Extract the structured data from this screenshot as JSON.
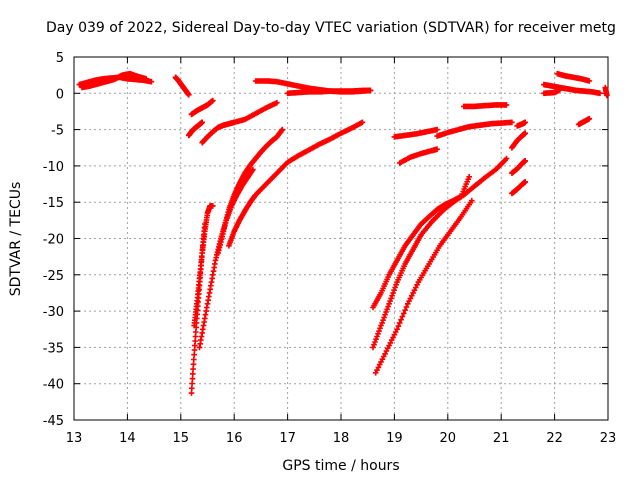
{
  "chart_data": {
    "type": "scatter",
    "title": "Day 039 of 2022, Sidereal Day-to-day VTEC variation (SDTVAR) for receiver metg",
    "xlabel": "GPS time / hours",
    "ylabel": "SDTVAR / TECUs",
    "xlim": [
      13,
      23
    ],
    "ylim": [
      -45,
      5
    ],
    "x_ticks": [
      "13",
      "14",
      "15",
      "16",
      "17",
      "18",
      "19",
      "20",
      "21",
      "22",
      "23"
    ],
    "y_ticks": [
      "5",
      "0",
      "-5",
      "-10",
      "-15",
      "-20",
      "-25",
      "-30",
      "-35",
      "-40",
      "-45"
    ],
    "grid": true,
    "marker": "+",
    "color": "#ff0000",
    "series": [
      {
        "name": "seg1",
        "x": [
          13.1,
          13.25,
          13.4,
          13.55,
          13.7,
          13.85,
          14.0,
          14.15,
          14.3,
          14.45
        ],
        "y": [
          1.2,
          1.5,
          1.8,
          2.0,
          2.1,
          2.2,
          2.0,
          1.9,
          1.8,
          1.6
        ]
      },
      {
        "name": "seg2",
        "x": [
          13.15,
          13.3,
          13.45,
          13.6,
          13.75,
          13.9,
          14.05,
          14.2,
          14.35
        ],
        "y": [
          0.8,
          1.0,
          1.3,
          1.6,
          1.9,
          2.5,
          2.7,
          2.3,
          2.0
        ]
      },
      {
        "name": "seg3",
        "x": [
          14.9,
          14.95,
          15.0,
          15.05,
          15.1,
          15.15
        ],
        "y": [
          2.2,
          1.8,
          1.3,
          0.8,
          0.3,
          -0.2
        ]
      },
      {
        "name": "seg4",
        "x": [
          15.2,
          15.3,
          15.4,
          15.5,
          15.6
        ],
        "y": [
          -2.9,
          -2.4,
          -2.0,
          -1.6,
          -1.0
        ]
      },
      {
        "name": "seg5",
        "x": [
          15.15,
          15.2,
          15.25,
          15.3,
          15.35,
          15.4
        ],
        "y": [
          -5.8,
          -5.3,
          -4.9,
          -4.6,
          -4.3,
          -4.0
        ]
      },
      {
        "name": "seg6",
        "x": [
          15.4,
          15.5,
          15.6,
          15.7,
          15.8,
          15.9,
          16.0,
          16.2,
          16.4,
          16.6,
          16.8
        ],
        "y": [
          -6.8,
          -6.0,
          -5.3,
          -4.7,
          -4.4,
          -4.2,
          -4.0,
          -3.6,
          -2.8,
          -2.0,
          -1.3
        ]
      },
      {
        "name": "seg7",
        "x": [
          16.4,
          16.6,
          16.8,
          17.0,
          17.2,
          17.4,
          17.6,
          17.8,
          18.0,
          18.2,
          18.4,
          18.55
        ],
        "y": [
          1.7,
          1.7,
          1.6,
          1.3,
          1.0,
          0.7,
          0.5,
          0.3,
          0.2,
          0.2,
          0.3,
          0.4
        ]
      },
      {
        "name": "seg8",
        "x": [
          17.0,
          17.2,
          17.4,
          17.6,
          17.8,
          18.0,
          18.2,
          18.4,
          18.55
        ],
        "y": [
          0.0,
          0.1,
          0.2,
          0.2,
          0.3,
          0.3,
          0.3,
          0.4,
          0.4
        ]
      },
      {
        "name": "seg9",
        "x": [
          15.2,
          15.25,
          15.3,
          15.35,
          15.4,
          15.45
        ],
        "y": [
          -41.3,
          -36.0,
          -31.0,
          -26.5,
          -22.0,
          -18.0
        ]
      },
      {
        "name": "seg10",
        "x": [
          15.25,
          15.3,
          15.35,
          15.4,
          15.45,
          15.5,
          15.55,
          15.6
        ],
        "y": [
          -32.0,
          -29.0,
          -25.5,
          -22.0,
          -19.0,
          -16.5,
          -15.5,
          -15.5
        ]
      },
      {
        "name": "seg11",
        "x": [
          15.35,
          15.45,
          15.55,
          15.65,
          15.75,
          15.85,
          15.95,
          16.05,
          16.15,
          16.25,
          16.35
        ],
        "y": [
          -35.0,
          -31.0,
          -27.0,
          -23.0,
          -20.0,
          -17.5,
          -15.5,
          -14.0,
          -12.7,
          -11.6,
          -10.5
        ]
      },
      {
        "name": "seg12",
        "x": [
          15.7,
          15.8,
          15.9,
          16.0,
          16.1,
          16.2,
          16.3,
          16.4,
          16.5,
          16.6,
          16.7,
          16.8,
          16.9
        ],
        "y": [
          -22.0,
          -19.0,
          -16.0,
          -14.0,
          -12.4,
          -11.0,
          -9.9,
          -9.0,
          -8.1,
          -7.3,
          -6.6,
          -6.0,
          -5.0
        ]
      },
      {
        "name": "seg13",
        "x": [
          15.9,
          16.0,
          16.1,
          16.2,
          16.3,
          16.4,
          16.6,
          16.8,
          17.0,
          17.2,
          17.4,
          17.6,
          17.8,
          18.0,
          18.2,
          18.4
        ],
        "y": [
          -21.0,
          -19.0,
          -17.5,
          -16.2,
          -15.0,
          -14.0,
          -12.5,
          -11.0,
          -9.5,
          -8.6,
          -7.8,
          -7.0,
          -6.3,
          -5.5,
          -4.8,
          -4.0
        ]
      },
      {
        "name": "seg14",
        "x": [
          18.6,
          18.75,
          18.9,
          19.05,
          19.2,
          19.35,
          19.5,
          19.65,
          19.8,
          19.95,
          20.1,
          20.25,
          20.4
        ],
        "y": [
          -29.5,
          -27.5,
          -25.0,
          -23.0,
          -21.0,
          -19.5,
          -18.0,
          -17.0,
          -16.0,
          -15.3,
          -14.8,
          -14.2,
          -11.5
        ]
      },
      {
        "name": "seg15",
        "x": [
          18.6,
          18.75,
          18.9,
          19.05,
          19.2,
          19.35,
          19.5,
          19.7,
          19.9,
          20.1,
          20.3,
          20.5,
          20.7,
          20.9,
          21.1
        ],
        "y": [
          -35.0,
          -32.0,
          -29.0,
          -26.0,
          -23.5,
          -21.5,
          -19.5,
          -17.7,
          -16.2,
          -15.0,
          -14.0,
          -12.8,
          -11.6,
          -10.5,
          -9.0
        ]
      },
      {
        "name": "seg16",
        "x": [
          18.65,
          18.85,
          19.05,
          19.25,
          19.45,
          19.65,
          19.85,
          20.05,
          20.25,
          20.45
        ],
        "y": [
          -38.5,
          -35.5,
          -32.5,
          -29.0,
          -26.0,
          -23.5,
          -21.0,
          -19.0,
          -17.0,
          -14.8
        ]
      },
      {
        "name": "seg17",
        "x": [
          19.0,
          19.2,
          19.4,
          19.6,
          19.8
        ],
        "y": [
          -6.0,
          -5.8,
          -5.6,
          -5.3,
          -5.0
        ]
      },
      {
        "name": "seg18",
        "x": [
          19.1,
          19.3,
          19.5,
          19.7,
          19.8
        ],
        "y": [
          -9.6,
          -8.8,
          -8.3,
          -7.9,
          -7.7
        ]
      },
      {
        "name": "seg19",
        "x": [
          19.8,
          20.0,
          20.2,
          20.4,
          20.6,
          20.8,
          21.0,
          21.2
        ],
        "y": [
          -5.9,
          -5.4,
          -5.0,
          -4.6,
          -4.4,
          -4.2,
          -4.1,
          -4.0
        ]
      },
      {
        "name": "seg20",
        "x": [
          20.3,
          20.5,
          20.7,
          20.9,
          21.1
        ],
        "y": [
          -1.8,
          -1.8,
          -1.7,
          -1.6,
          -1.6
        ]
      },
      {
        "name": "seg21",
        "x": [
          21.2,
          21.3,
          21.4,
          21.45
        ],
        "y": [
          -7.5,
          -6.5,
          -5.8,
          -5.5
        ]
      },
      {
        "name": "seg22",
        "x": [
          21.2,
          21.3,
          21.4,
          21.45
        ],
        "y": [
          -11.0,
          -10.4,
          -9.6,
          -9.3
        ]
      },
      {
        "name": "seg23",
        "x": [
          21.3,
          21.4,
          21.45
        ],
        "y": [
          -4.5,
          -4.2,
          -4.0
        ]
      },
      {
        "name": "seg24",
        "x": [
          21.2,
          21.3,
          21.4,
          21.45
        ],
        "y": [
          -13.8,
          -13.2,
          -12.5,
          -12.2
        ]
      },
      {
        "name": "seg25",
        "x": [
          21.8,
          21.95,
          22.1,
          22.25,
          22.4,
          22.55,
          22.7,
          22.85
        ],
        "y": [
          1.2,
          1.0,
          0.8,
          0.6,
          0.4,
          0.3,
          0.2,
          0.0
        ]
      },
      {
        "name": "seg26",
        "x": [
          21.8,
          22.0,
          22.1
        ],
        "y": [
          0.0,
          0.1,
          0.5
        ]
      },
      {
        "name": "seg27",
        "x": [
          22.05,
          22.2,
          22.35,
          22.5,
          22.65
        ],
        "y": [
          2.7,
          2.4,
          2.2,
          2.0,
          1.7
        ]
      },
      {
        "name": "seg28",
        "x": [
          22.45,
          22.55,
          22.65
        ],
        "y": [
          -4.3,
          -3.9,
          -3.5
        ]
      },
      {
        "name": "seg29",
        "x": [
          22.95,
          22.98
        ],
        "y": [
          0.8,
          -0.3
        ]
      }
    ]
  }
}
